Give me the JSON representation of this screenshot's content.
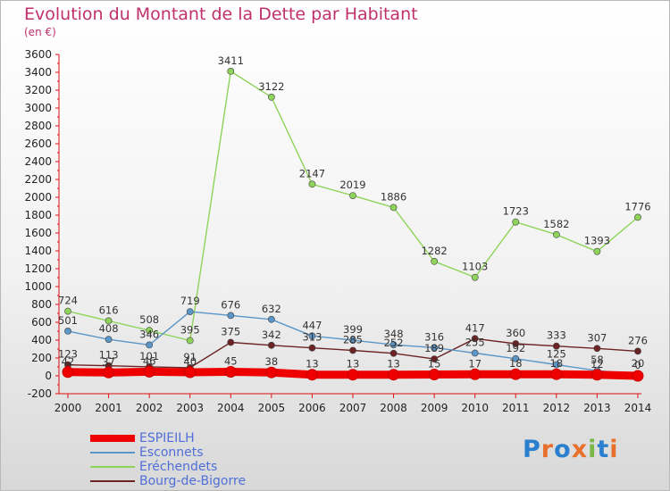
{
  "header": {
    "title": "Evolution du Montant de la Dette par Habitant",
    "subtitle": "(en €)"
  },
  "logo": {
    "text": "Proxiti",
    "colors": [
      "#2a7fcf",
      "#e8702a",
      "#2a7fcf",
      "#e8702a",
      "#7ab648",
      "#2a7fcf",
      "#e8702a"
    ]
  },
  "chart_data": {
    "type": "line",
    "title": "Evolution du Montant de la Dette par Habitant",
    "subtitle": "(en €)",
    "xlabel": "",
    "ylabel": "",
    "x": [
      "2000",
      "2001",
      "2002",
      "2003",
      "2004",
      "2005",
      "2006",
      "2007",
      "2008",
      "2009",
      "2010",
      "2011",
      "2012",
      "2013",
      "2014"
    ],
    "ylim": [
      -200,
      3600
    ],
    "yticks": [
      -200,
      0,
      200,
      400,
      600,
      800,
      1000,
      1200,
      1400,
      1600,
      1800,
      2000,
      2200,
      2400,
      2600,
      2800,
      3000,
      3200,
      3400,
      3600
    ],
    "grid": false,
    "legend_position": "bottom-left",
    "series": [
      {
        "name": "ESPIEILH",
        "color": "#ee0000",
        "values": [
          42,
          37,
          46,
          40,
          45,
          38,
          13,
          13,
          13,
          15,
          17,
          18,
          18,
          12,
          0
        ]
      },
      {
        "name": "Esconnets",
        "color": "#5b96c8",
        "values": [
          501,
          408,
          346,
          719,
          676,
          632,
          447,
          399,
          348,
          316,
          255,
          192,
          125,
          58,
          20
        ]
      },
      {
        "name": "Eréchendets",
        "color": "#8fd45a",
        "values": [
          724,
          616,
          508,
          395,
          3411,
          3122,
          2147,
          2019,
          1886,
          1282,
          1103,
          1723,
          1582,
          1393,
          1776
        ]
      },
      {
        "name": "Bourg-de-Bigorre",
        "color": "#6b2324",
        "values": [
          123,
          113,
          101,
          91,
          375,
          342,
          313,
          285,
          252,
          189,
          417,
          360,
          333,
          307,
          276
        ]
      }
    ]
  }
}
